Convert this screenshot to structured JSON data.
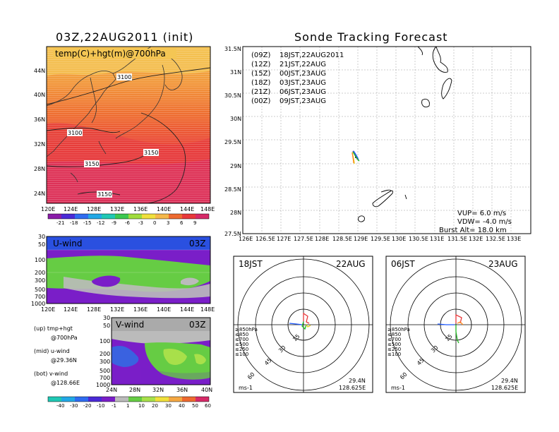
{
  "left_title": "03Z,22AUG2011 (init)",
  "right_title": "Sonde Tracking Forecast",
  "top_map": {
    "label": "temp(C)+hgt(m)@700hPa",
    "lat_labels": [
      "44N",
      "40N",
      "36N",
      "32N",
      "28N",
      "24N"
    ],
    "lon_labels": [
      "120E",
      "124E",
      "128E",
      "132E",
      "136E",
      "140E",
      "144E",
      "148E"
    ],
    "contour_labels": [
      "3100",
      "3100",
      "3150",
      "3150",
      "3150"
    ]
  },
  "temp_colorbar": {
    "labels": [
      "-21",
      "-18",
      "-15",
      "-12",
      "-9",
      "-6",
      "-3",
      "0",
      "3",
      "6",
      "9"
    ]
  },
  "uwind": {
    "label": "U-wind",
    "time": "03Z",
    "p_labels": [
      "30",
      "50",
      "100",
      "200",
      "300",
      "500",
      "700",
      "1000"
    ],
    "lon_labels": [
      "120E",
      "124E",
      "128E",
      "132E",
      "136E",
      "140E",
      "144E",
      "148E"
    ]
  },
  "vwind": {
    "label": "V-wind",
    "time": "03Z",
    "p_labels": [
      "30",
      "50",
      "100",
      "200",
      "300",
      "500",
      "700",
      "1000"
    ],
    "lat_labels": [
      "24N",
      "28N",
      "32N",
      "36N",
      "40N"
    ]
  },
  "legend_notes": [
    {
      "line1": "(up) tmp+hgt",
      "line2": "@700hPa"
    },
    {
      "line1": "(mid) u-wind",
      "line2": "@29.36N"
    },
    {
      "line1": "(bot) v-wind",
      "line2": "@128.66E"
    }
  ],
  "wind_colorbar": {
    "labels": [
      "-40",
      "-30",
      "-20",
      "-10",
      "-1",
      "1",
      "10",
      "20",
      "30",
      "40",
      "50",
      "60"
    ]
  },
  "track_map": {
    "lat_labels": [
      "31.5N",
      "31N",
      "30.5N",
      "30N",
      "29.5N",
      "29N",
      "28.5N",
      "28N",
      "27.5N"
    ],
    "lon_labels": [
      "126E",
      "126.5E",
      "127E",
      "127.5E",
      "128E",
      "128.5E",
      "129E",
      "129.5E",
      "130E",
      "130.5E",
      "131E",
      "131.5E",
      "132E",
      "132.5E",
      "133E"
    ],
    "legend": [
      {
        "utc": "(09Z)",
        "jst": "18JST,22AUG2011",
        "color": "#000000"
      },
      {
        "utc": "(12Z)",
        "jst": "21JST,22AUG",
        "color": "#a020c8"
      },
      {
        "utc": "(15Z)",
        "jst": "00JST,23AUG",
        "color": "#1e5aff"
      },
      {
        "utc": "(18Z)",
        "jst": "03JST,23AUG",
        "color": "#22b822"
      },
      {
        "utc": "(21Z)",
        "jst": "06JST,23AUG",
        "color": "#e6d21e"
      },
      {
        "utc": "(00Z)",
        "jst": "09JST,23AUG",
        "color": "#ff8c1e"
      }
    ],
    "vup": "VUP=  6.0  m/s",
    "vdw": "VDW= -4.0  m/s",
    "burst": "Burst Alt=  18.0  km"
  },
  "polar_left": {
    "time": "18JST",
    "date": "22AUG",
    "rings": [
      "15",
      "30",
      "45",
      "60"
    ],
    "legend": [
      "≥850hPa",
      "≤850",
      "≤700",
      "≤500",
      "≤250",
      "≤100"
    ],
    "unit": "ms-1",
    "lat": "29.4N",
    "lon": "128.625E"
  },
  "polar_right": {
    "time": "06JST",
    "date": "23AUG",
    "rings": [
      "15",
      "30",
      "45",
      "60"
    ],
    "legend": [
      "≥850hPa",
      "≤850",
      "≤700",
      "≤500",
      "≤250",
      "≤100"
    ],
    "unit": "ms-1",
    "lat": "29.4N",
    "lon": "128.625E"
  }
}
